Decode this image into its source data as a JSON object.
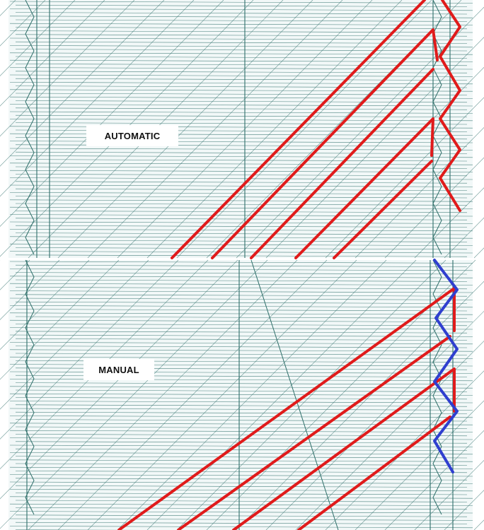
{
  "panels": [
    {
      "id": "automatic",
      "label": "AUTOMATIC"
    },
    {
      "id": "manual",
      "label": "MANUAL"
    }
  ],
  "colors": {
    "background": "#ffffff",
    "mesh_line": "#2f6f6a",
    "mesh_fill": "#d9ecea",
    "highlight_red": "#e01b1b",
    "highlight_blue": "#2f3fcf",
    "label_text": "#111111"
  }
}
